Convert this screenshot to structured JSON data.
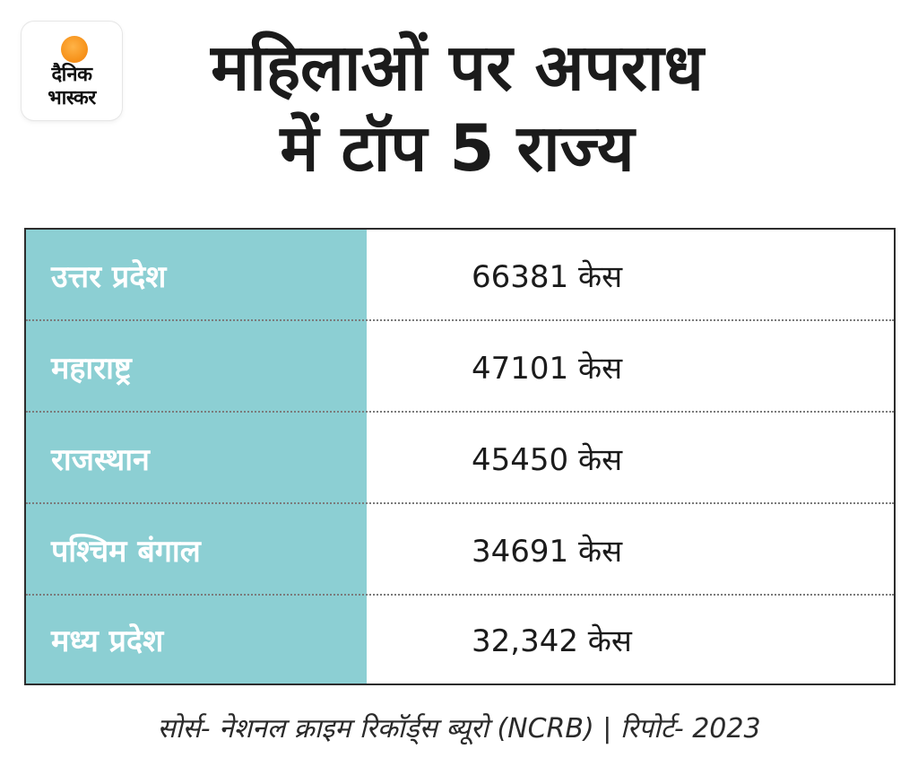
{
  "logo": {
    "line1": "दैनिक",
    "line2": "भास्कर",
    "sun_color": "#f7941d"
  },
  "title": {
    "line1": "महिलाओं पर अपराध",
    "line2": "में टॉप 5 राज्य"
  },
  "colors": {
    "label_column": "#8ccfd3",
    "border": "#2d2d2d"
  },
  "rows": [
    {
      "state": "उत्तर प्रदेश",
      "cases": "66381 केस"
    },
    {
      "state": "महाराष्ट्र",
      "cases": "47101 केस"
    },
    {
      "state": "राजस्थान",
      "cases": "45450 केस"
    },
    {
      "state": "पश्चिम बंगाल",
      "cases": "34691 केस"
    },
    {
      "state": "मध्य प्रदेश",
      "cases": "32,342 केस"
    }
  ],
  "footer": "सोर्स- नेशनल क्राइम रिकॉर्ड्स ब्यूरो (NCRB) |  रिपोर्ट- 2023"
}
